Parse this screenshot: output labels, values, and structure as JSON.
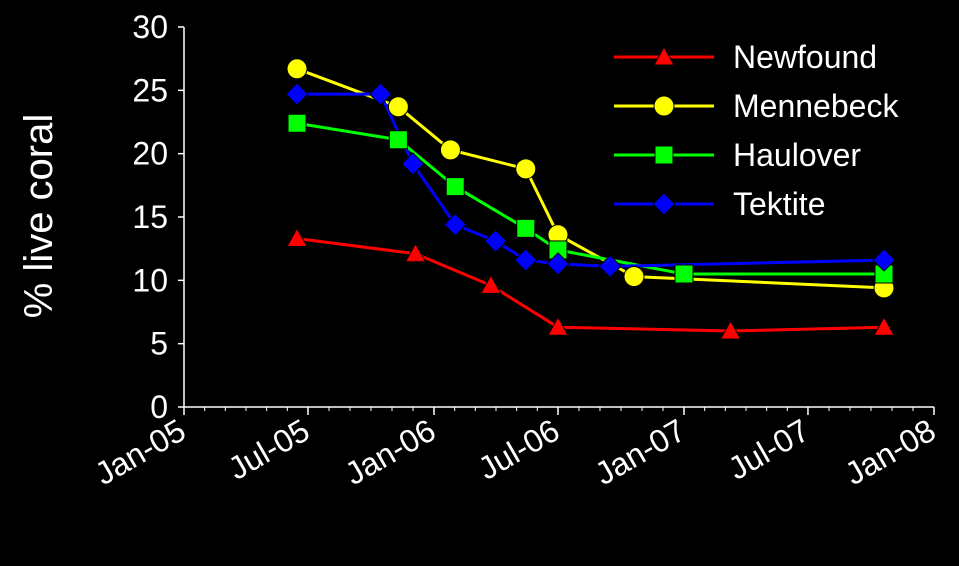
{
  "chart_data": {
    "type": "line",
    "title": "",
    "xlabel": "",
    "ylabel": "% live coral",
    "ylim": [
      0,
      30
    ],
    "yticks": [
      "0",
      "5",
      "10",
      "15",
      "20",
      "25",
      "30"
    ],
    "xticks": [
      {
        "label": "Jan-05",
        "date": "2005-01-01"
      },
      {
        "label": "Jul-05",
        "date": "2005-07-01"
      },
      {
        "label": "Jan-06",
        "date": "2006-01-01"
      },
      {
        "label": "Jul-06",
        "date": "2006-07-01"
      },
      {
        "label": "Jan-07",
        "date": "2007-01-01"
      },
      {
        "label": "Jul-07",
        "date": "2007-07-01"
      },
      {
        "label": "Jan-08",
        "date": "2008-01-01"
      }
    ],
    "xlim": [
      "2005-01-01",
      "2008-01-01"
    ],
    "grid": false,
    "legend_position": "top-right",
    "series": [
      {
        "name": "Newfound",
        "color": "#ff0000",
        "marker": "triangle",
        "points": [
          {
            "x": "2005-06-15",
            "y": 13.3
          },
          {
            "x": "2005-12-05",
            "y": 12.1
          },
          {
            "x": "2006-03-25",
            "y": 9.6
          },
          {
            "x": "2006-07-01",
            "y": 6.3
          },
          {
            "x": "2007-03-10",
            "y": 6.0
          },
          {
            "x": "2007-10-20",
            "y": 6.3
          }
        ]
      },
      {
        "name": "Mennebeck",
        "color": "#ffff00",
        "marker": "circle",
        "points": [
          {
            "x": "2005-06-15",
            "y": 26.7
          },
          {
            "x": "2005-11-10",
            "y": 23.7
          },
          {
            "x": "2006-01-25",
            "y": 20.3
          },
          {
            "x": "2006-05-15",
            "y": 18.8
          },
          {
            "x": "2006-07-01",
            "y": 13.6
          },
          {
            "x": "2006-10-20",
            "y": 10.3
          },
          {
            "x": "2007-10-20",
            "y": 9.4
          }
        ]
      },
      {
        "name": "Haulover",
        "color": "#00ff00",
        "marker": "square",
        "points": [
          {
            "x": "2005-06-15",
            "y": 22.4
          },
          {
            "x": "2005-11-10",
            "y": 21.1
          },
          {
            "x": "2006-02-01",
            "y": 17.4
          },
          {
            "x": "2006-05-15",
            "y": 14.1
          },
          {
            "x": "2006-07-01",
            "y": 12.4
          },
          {
            "x": "2007-01-01",
            "y": 10.5
          },
          {
            "x": "2007-10-20",
            "y": 10.5
          }
        ]
      },
      {
        "name": "Tektite",
        "color": "#0000ff",
        "marker": "diamond",
        "points": [
          {
            "x": "2005-06-15",
            "y": 24.7
          },
          {
            "x": "2005-10-15",
            "y": 24.7
          },
          {
            "x": "2005-12-01",
            "y": 19.2
          },
          {
            "x": "2006-02-01",
            "y": 14.4
          },
          {
            "x": "2006-04-01",
            "y": 13.1
          },
          {
            "x": "2006-05-15",
            "y": 11.6
          },
          {
            "x": "2006-07-01",
            "y": 11.3
          },
          {
            "x": "2006-09-15",
            "y": 11.1
          },
          {
            "x": "2007-10-20",
            "y": 11.6
          }
        ]
      }
    ]
  }
}
